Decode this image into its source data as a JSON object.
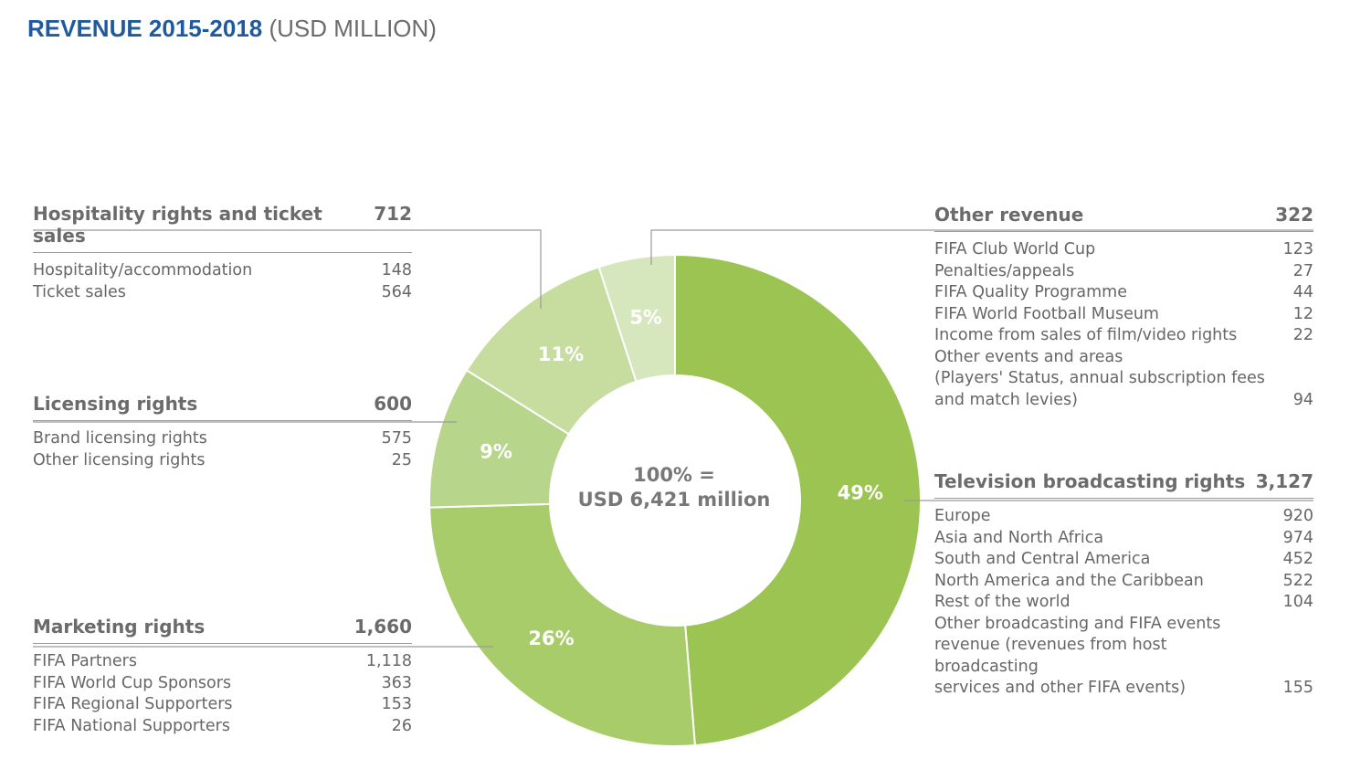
{
  "title": {
    "main": "REVENUE 2015-2018",
    "unit": "(USD MILLION)"
  },
  "chart_data": {
    "type": "pie",
    "center_label": [
      "100% =",
      "USD 6,421 million"
    ],
    "slices": [
      {
        "label": "Television broadcasting rights",
        "percent": 49,
        "percent_label": "49%",
        "value": 3127,
        "color": "#9bc453"
      },
      {
        "label": "Marketing rights",
        "percent": 26,
        "percent_label": "26%",
        "value": 1660,
        "color": "#a9cc6a"
      },
      {
        "label": "Licensing rights",
        "percent": 9,
        "percent_label": "9%",
        "value": 600,
        "color": "#b8d68b"
      },
      {
        "label": "Hospitality rights and ticket sales",
        "percent": 11,
        "percent_label": "11%",
        "value": 712,
        "color": "#c6dd9f"
      },
      {
        "label": "Other revenue",
        "percent": 5,
        "percent_label": "5%",
        "value": 322,
        "color": "#d7e7bd"
      }
    ]
  },
  "blocks": {
    "hospitality": {
      "title": "Hospitality rights and ticket sales",
      "total": "712",
      "rows": [
        {
          "label": "Hospitality/accommodation",
          "value": "148"
        },
        {
          "label": "Ticket sales",
          "value": "564"
        }
      ]
    },
    "licensing": {
      "title": "Licensing rights",
      "total": "600",
      "rows": [
        {
          "label": "Brand licensing rights",
          "value": "575"
        },
        {
          "label": "Other licensing rights",
          "value": "25"
        }
      ]
    },
    "marketing": {
      "title": "Marketing rights",
      "total": "1,660",
      "rows": [
        {
          "label": "FIFA Partners",
          "value": "1,118"
        },
        {
          "label": "FIFA World Cup Sponsors",
          "value": "363"
        },
        {
          "label": "FIFA Regional Supporters",
          "value": "153"
        },
        {
          "label": "FIFA National Supporters",
          "value": "26"
        }
      ]
    },
    "other": {
      "title": "Other revenue",
      "total": "322",
      "rows": [
        {
          "label": "FIFA Club World Cup",
          "value": "123"
        },
        {
          "label": "Penalties/appeals",
          "value": "27"
        },
        {
          "label": "FIFA Quality Programme",
          "value": "44"
        },
        {
          "label": "FIFA World Football Museum",
          "value": "12"
        },
        {
          "label": "Income from sales of film/video rights",
          "value": "22"
        },
        {
          "label": "Other events and areas\n(Players' Status, annual subscription fees\nand match levies)",
          "value": "94"
        }
      ]
    },
    "television": {
      "title": "Television broadcasting rights",
      "total": "3,127",
      "rows": [
        {
          "label": "Europe",
          "value": "920"
        },
        {
          "label": "Asia and North Africa",
          "value": "974"
        },
        {
          "label": "South and Central America",
          "value": "452"
        },
        {
          "label": "North America and the Caribbean",
          "value": "522"
        },
        {
          "label": "Rest of the world",
          "value": "104"
        },
        {
          "label": "Other broadcasting and FIFA events\nrevenue (revenues from host broadcasting\nservices and other FIFA events)",
          "value": "155"
        }
      ]
    }
  }
}
